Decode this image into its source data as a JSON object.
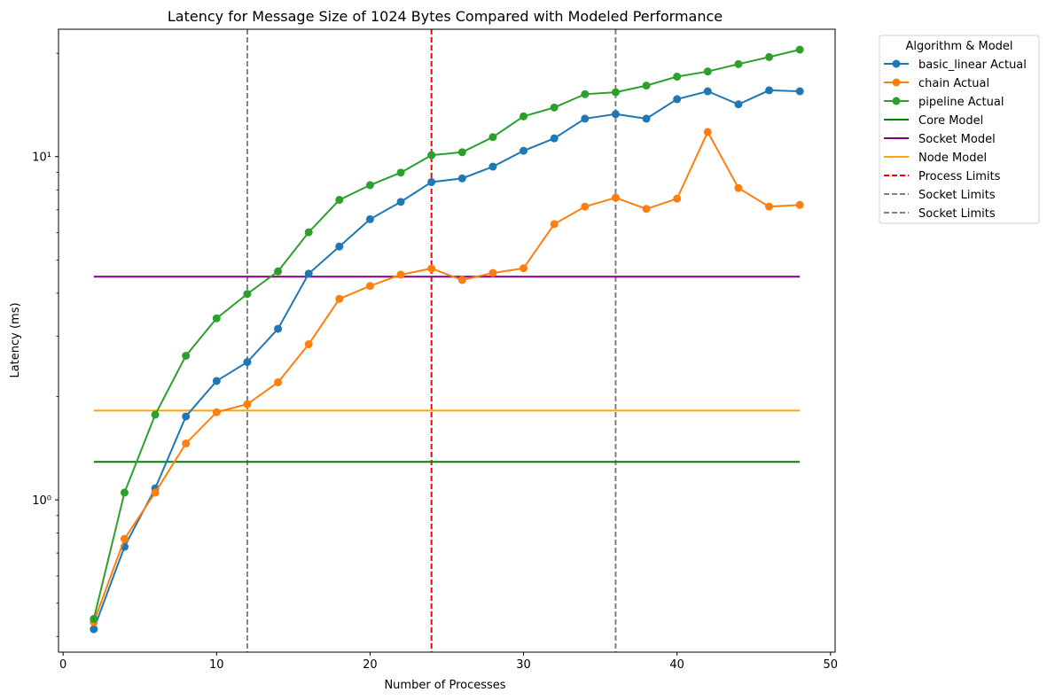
{
  "chart_data": {
    "type": "line",
    "title": "Latency for Message Size of 1024 Bytes Compared with Modeled Performance",
    "xlabel": "Number of Processes",
    "ylabel": "Latency (ms)",
    "xlim": [
      -0.3,
      50.3
    ],
    "ylim": [
      0.36,
      23.5
    ],
    "yscale": "log",
    "xticks": [
      0,
      10,
      20,
      30,
      40,
      50
    ],
    "yticks": [
      1,
      10
    ],
    "ytick_labels": [
      "10⁰",
      "10¹"
    ],
    "grid": false,
    "legend": {
      "title": "Algorithm & Model",
      "placement": "outside-top-right"
    },
    "x": [
      2,
      4,
      6,
      8,
      10,
      12,
      14,
      16,
      18,
      20,
      22,
      24,
      26,
      28,
      30,
      32,
      34,
      36,
      38,
      40,
      42,
      44,
      46,
      48
    ],
    "series": [
      {
        "name": "basic_linear Actual",
        "color": "#1f77b4",
        "marker": "circle",
        "values": [
          0.42,
          0.73,
          1.08,
          1.75,
          2.22,
          2.52,
          3.15,
          4.56,
          5.47,
          6.57,
          7.38,
          8.43,
          8.64,
          9.35,
          10.4,
          11.3,
          12.9,
          13.3,
          12.9,
          14.7,
          15.5,
          14.2,
          15.6,
          15.5
        ]
      },
      {
        "name": "chain Actual",
        "color": "#ff7f0e",
        "marker": "circle",
        "values": [
          0.44,
          0.77,
          1.05,
          1.46,
          1.8,
          1.9,
          2.2,
          2.84,
          3.85,
          4.2,
          4.53,
          4.72,
          4.37,
          4.58,
          4.73,
          6.36,
          7.15,
          7.59,
          7.04,
          7.54,
          11.8,
          8.1,
          7.15,
          7.23
        ]
      },
      {
        "name": "pipeline Actual",
        "color": "#2ca02c",
        "marker": "circle",
        "values": [
          0.45,
          1.05,
          1.77,
          2.63,
          3.38,
          3.98,
          4.63,
          6.02,
          7.48,
          8.26,
          8.98,
          10.1,
          10.3,
          11.4,
          13.1,
          13.9,
          15.2,
          15.4,
          16.1,
          17.1,
          17.7,
          18.6,
          19.5,
          20.5
        ]
      },
      {
        "name": "Core Model",
        "color": "#008000",
        "style": "solid",
        "constant": 1.29
      },
      {
        "name": "Socket Model",
        "color": "#800080",
        "style": "solid",
        "constant": 4.47
      },
      {
        "name": "Node Model",
        "color": "#ffa500",
        "style": "solid",
        "constant": 1.82
      },
      {
        "name": "Process Limits",
        "color": "#ff0000",
        "style": "dashed",
        "vline": 24
      },
      {
        "name": "Socket Limits",
        "color": "#808080",
        "style": "dashed",
        "vline": 12
      },
      {
        "name": "Socket Limits",
        "color": "#808080",
        "style": "dashed",
        "vline": 36
      }
    ]
  }
}
